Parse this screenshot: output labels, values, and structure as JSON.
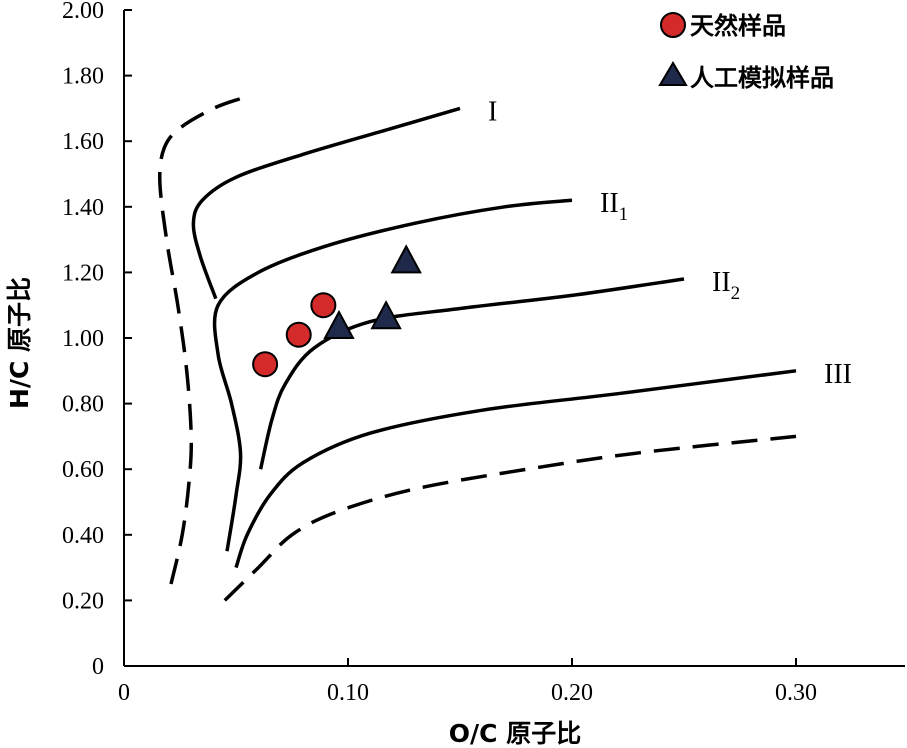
{
  "chart_data": {
    "type": "scatter",
    "xlabel": "O/C 原子比",
    "ylabel": "H/C 原子比",
    "xlim": [
      0,
      0.35
    ],
    "ylim": [
      0,
      2.0
    ],
    "x_ticks": [
      "0",
      "0.10",
      "0.20",
      "0.30"
    ],
    "x_tick_values": [
      0,
      0.1,
      0.2,
      0.3
    ],
    "y_ticks": [
      "0",
      "0.20",
      "0.40",
      "0.60",
      "0.80",
      "1.00",
      "1.20",
      "1.40",
      "1.60",
      "1.80",
      "2.00"
    ],
    "y_tick_values": [
      0,
      0.2,
      0.4,
      0.6,
      0.8,
      1.0,
      1.2,
      1.4,
      1.6,
      1.8,
      2.0
    ],
    "grid": false,
    "legend_position": "top-right",
    "series": [
      {
        "name": "天然样品",
        "marker": "circle",
        "color": "#d42a2a",
        "points": [
          {
            "x": 0.063,
            "y": 0.92
          },
          {
            "x": 0.078,
            "y": 1.01
          },
          {
            "x": 0.089,
            "y": 1.1
          }
        ]
      },
      {
        "name": "人工模拟样品",
        "marker": "triangle",
        "color": "#1f2a4a",
        "points": [
          {
            "x": 0.096,
            "y": 1.03
          },
          {
            "x": 0.117,
            "y": 1.06
          },
          {
            "x": 0.126,
            "y": 1.23
          }
        ]
      }
    ],
    "curves": [
      {
        "label": "I",
        "sub": "",
        "style": "solid",
        "points": [
          [
            0.041,
            1.12
          ],
          [
            0.034,
            1.25
          ],
          [
            0.031,
            1.35
          ],
          [
            0.035,
            1.42
          ],
          [
            0.05,
            1.49
          ],
          [
            0.08,
            1.56
          ],
          [
            0.12,
            1.64
          ],
          [
            0.15,
            1.7
          ]
        ]
      },
      {
        "label": "II",
        "sub": "1",
        "style": "solid",
        "points": [
          [
            0.046,
            0.35
          ],
          [
            0.05,
            0.52
          ],
          [
            0.052,
            0.65
          ],
          [
            0.048,
            0.8
          ],
          [
            0.042,
            0.95
          ],
          [
            0.042,
            1.1
          ],
          [
            0.06,
            1.2
          ],
          [
            0.09,
            1.28
          ],
          [
            0.13,
            1.35
          ],
          [
            0.17,
            1.4
          ],
          [
            0.2,
            1.42
          ]
        ]
      },
      {
        "label": "II",
        "sub": "2",
        "style": "solid",
        "points": [
          [
            0.061,
            0.6
          ],
          [
            0.066,
            0.75
          ],
          [
            0.072,
            0.86
          ],
          [
            0.085,
            0.97
          ],
          [
            0.11,
            1.05
          ],
          [
            0.15,
            1.09
          ],
          [
            0.2,
            1.13
          ],
          [
            0.25,
            1.18
          ]
        ]
      },
      {
        "label": "III",
        "sub": "",
        "style": "solid",
        "points": [
          [
            0.05,
            0.3
          ],
          [
            0.055,
            0.4
          ],
          [
            0.065,
            0.52
          ],
          [
            0.08,
            0.62
          ],
          [
            0.11,
            0.71
          ],
          [
            0.16,
            0.78
          ],
          [
            0.22,
            0.83
          ],
          [
            0.3,
            0.9
          ]
        ]
      },
      {
        "label": "",
        "sub": "",
        "style": "dashed",
        "points": [
          [
            0.021,
            0.25
          ],
          [
            0.026,
            0.4
          ],
          [
            0.029,
            0.56
          ],
          [
            0.03,
            0.7
          ],
          [
            0.028,
            0.9
          ],
          [
            0.024,
            1.1
          ],
          [
            0.019,
            1.3
          ],
          [
            0.016,
            1.48
          ],
          [
            0.018,
            1.58
          ],
          [
            0.025,
            1.64
          ],
          [
            0.04,
            1.7
          ],
          [
            0.052,
            1.73
          ]
        ]
      },
      {
        "label": "",
        "sub": "",
        "style": "dashed",
        "points": [
          [
            0.045,
            0.2
          ],
          [
            0.06,
            0.3
          ],
          [
            0.075,
            0.4
          ],
          [
            0.095,
            0.47
          ],
          [
            0.13,
            0.54
          ],
          [
            0.18,
            0.6
          ],
          [
            0.23,
            0.65
          ],
          [
            0.3,
            0.7
          ]
        ]
      }
    ]
  }
}
